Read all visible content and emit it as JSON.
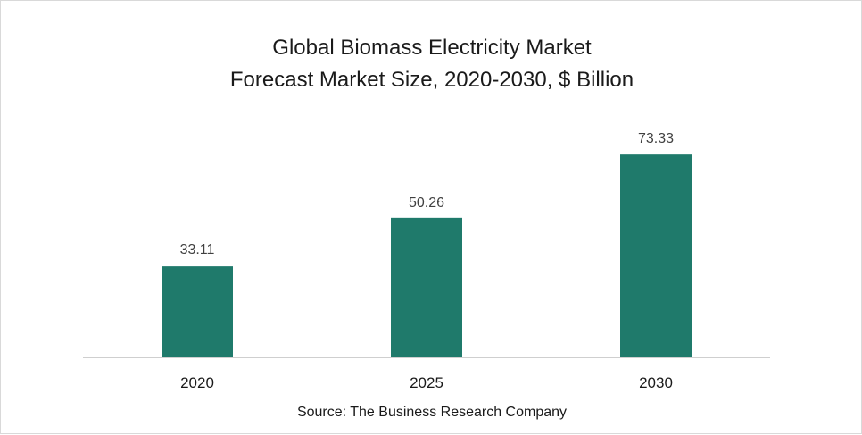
{
  "chart_data": {
    "type": "bar",
    "title": "Global Biomass Electricity Market",
    "subtitle": "Forecast Market Size, 2020-2030, $ Billion",
    "categories": [
      "2020",
      "2025",
      "2030"
    ],
    "values": [
      33.11,
      50.26,
      73.33
    ],
    "value_labels": [
      "33.11",
      "50.26",
      "73.33"
    ],
    "xlabel": "",
    "ylabel": "",
    "ylim": [
      0,
      100
    ],
    "grid": false,
    "legend": "none",
    "bar_color": "#1f7a6b",
    "source": "Source: The Business Research Company"
  }
}
